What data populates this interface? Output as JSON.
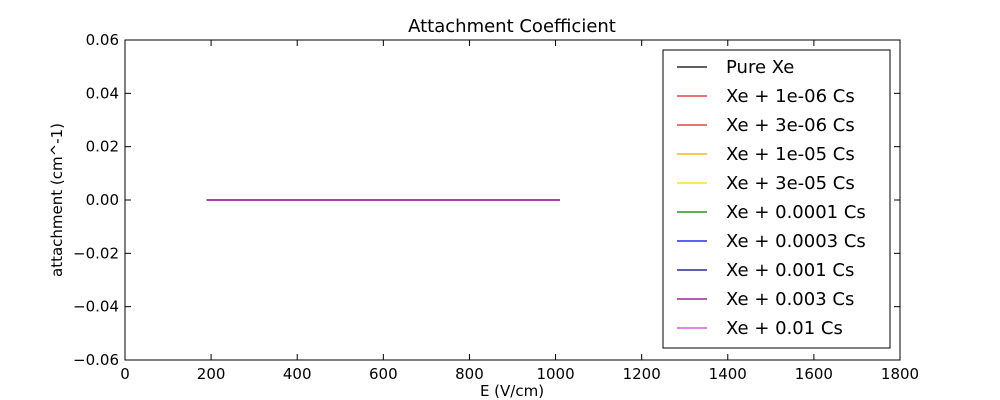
{
  "chart_data": {
    "type": "line",
    "title": "Attachment Coefficient",
    "xlabel": "E (V/cm)",
    "ylabel": "attachment (cm^-1)",
    "xlim": [
      0,
      1800
    ],
    "ylim": [
      -0.06,
      0.06
    ],
    "x_ticks": [
      0,
      200,
      400,
      600,
      800,
      1000,
      1200,
      1400,
      1600,
      1800
    ],
    "x_tick_labels": [
      "0",
      "200",
      "400",
      "600",
      "800",
      "1000",
      "1200",
      "1400",
      "1600",
      "1800"
    ],
    "y_ticks": [
      -0.06,
      -0.04,
      -0.02,
      0.0,
      0.02,
      0.04,
      0.06
    ],
    "y_tick_labels": [
      "−0.06",
      "−0.04",
      "−0.02",
      "0.00",
      "0.02",
      "0.04",
      "0.06"
    ],
    "grid": false,
    "legend_position": "top-right",
    "series": [
      {
        "name": "Pure Xe",
        "color": "#000000",
        "x": [
          190,
          1010
        ],
        "y": [
          0,
          0
        ]
      },
      {
        "name": "Xe + 1e-06 Cs",
        "color": "#d62020",
        "x": [
          190,
          1010
        ],
        "y": [
          0,
          0
        ]
      },
      {
        "name": "Xe + 3e-06 Cs",
        "color": "#e41a1c",
        "x": [
          190,
          1010
        ],
        "y": [
          0,
          0
        ]
      },
      {
        "name": "Xe + 1e-05 Cs",
        "color": "#ffa500",
        "x": [
          190,
          1010
        ],
        "y": [
          0,
          0
        ]
      },
      {
        "name": "Xe + 3e-05 Cs",
        "color": "#ffd700",
        "x": [
          190,
          1010
        ],
        "y": [
          0,
          0
        ]
      },
      {
        "name": "Xe + 0.0001 Cs",
        "color": "#008000",
        "x": [
          190,
          1010
        ],
        "y": [
          0,
          0
        ]
      },
      {
        "name": "Xe + 0.0003 Cs",
        "color": "#0000ff",
        "x": [
          190,
          1010
        ],
        "y": [
          0,
          0
        ]
      },
      {
        "name": "Xe + 0.001 Cs",
        "color": "#000080",
        "x": [
          190,
          1010
        ],
        "y": [
          0,
          0
        ]
      },
      {
        "name": "Xe + 0.003 Cs",
        "color": "#800080",
        "x": [
          190,
          1010
        ],
        "y": [
          0,
          0
        ]
      },
      {
        "name": "Xe + 0.01 Cs",
        "color": "#cc44cc",
        "x": [
          190,
          1010
        ],
        "y": [
          0,
          0
        ]
      }
    ]
  }
}
